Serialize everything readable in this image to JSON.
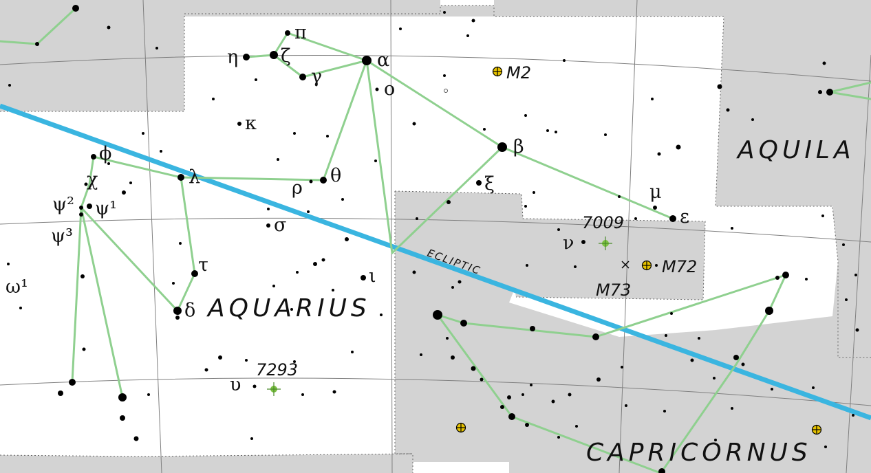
{
  "map": {
    "colors": {
      "background": "#ffffff",
      "outside_region": "#d3d3d3",
      "constellation_line": "#8fd08f",
      "ecliptic": "#3ab5e0",
      "grid": "#7f7f7f",
      "star": "#000000",
      "globular_cluster": "#e6c200",
      "planetary_nebula": "#7cc142"
    },
    "constellations": {
      "aquarius": "AQUARIUS",
      "aquila": "AQUILA",
      "capricornus": "CAPRICORNUS"
    },
    "ecliptic_label": "ECLIPTIC",
    "stars": {
      "pi": "π",
      "eta": "η",
      "zeta": "ζ",
      "gamma": "γ",
      "alpha": "α",
      "omicron": "ο",
      "kappa": "κ",
      "beta": "β",
      "phi": "ϕ",
      "chi": "χ",
      "lambda": "λ",
      "rho": "ρ",
      "theta": "θ",
      "xi": "ξ",
      "psi2": "ψ²",
      "psi1": "ψ¹",
      "psi3": "ψ³",
      "sigma": "σ",
      "mu": "μ",
      "epsilon": "ε",
      "nu": "ν",
      "tau": "τ",
      "iota": "ι",
      "omega1": "ω¹",
      "delta": "δ",
      "upsilon": "υ"
    },
    "deep_sky": {
      "m2": "M2",
      "ngc7009": "7009",
      "m72": "M72",
      "m73": "M73",
      "ngc7293": "7293"
    }
  }
}
